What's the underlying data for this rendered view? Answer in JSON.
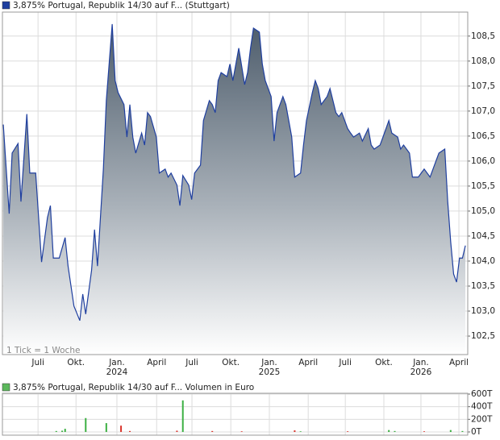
{
  "chart_data": [
    {
      "type": "area",
      "title": "3,875% Portugal, Republik 14/30 auf F... (Stuttgart)",
      "note": "1 Tick = 1 Woche",
      "color": "#1f3f9f",
      "grid": true,
      "x": [
        0,
        2,
        3,
        5,
        6,
        8,
        9,
        11,
        13,
        15,
        16,
        17,
        19,
        21,
        22,
        24,
        26,
        27,
        28,
        30,
        31,
        32,
        34,
        35,
        37,
        38,
        39,
        41,
        42,
        43,
        44,
        45,
        47,
        48,
        49,
        50,
        52,
        53,
        55,
        56,
        57,
        59,
        60,
        61,
        63,
        64,
        65,
        67,
        68,
        70,
        71,
        72,
        73,
        74,
        76,
        77,
        78,
        80,
        82,
        83,
        84,
        85,
        87,
        88,
        89,
        91,
        92,
        93,
        95,
        96,
        98,
        99,
        101,
        102,
        103,
        105,
        106,
        107,
        108,
        110,
        111,
        113,
        114,
        115,
        117,
        118,
        119,
        121,
        122,
        124,
        125,
        126,
        128,
        129,
        131,
        132,
        134,
        135,
        136,
        138,
        139,
        141,
        142,
        143,
        145,
        146,
        147,
        148,
        150,
        151,
        152,
        153,
        154,
        155,
        156,
        157
      ],
      "values": [
        106.73,
        104.95,
        106.16,
        106.35,
        105.19,
        106.94,
        105.76,
        105.76,
        103.98,
        104.87,
        105.11,
        104.06,
        104.06,
        104.47,
        103.9,
        103.1,
        102.81,
        103.34,
        102.94,
        103.82,
        104.63,
        103.9,
        105.84,
        107.21,
        108.74,
        107.61,
        107.37,
        107.13,
        106.48,
        107.13,
        106.48,
        106.16,
        106.56,
        106.32,
        106.97,
        106.89,
        106.48,
        105.76,
        105.84,
        105.68,
        105.76,
        105.52,
        105.11,
        105.71,
        105.52,
        105.23,
        105.76,
        105.92,
        106.81,
        107.21,
        107.13,
        106.97,
        107.61,
        107.77,
        107.69,
        107.94,
        107.61,
        108.26,
        107.53,
        107.77,
        108.26,
        108.66,
        108.58,
        107.94,
        107.61,
        107.29,
        106.4,
        106.97,
        107.29,
        107.13,
        106.48,
        105.68,
        105.76,
        106.32,
        106.81,
        107.37,
        107.61,
        107.45,
        107.13,
        107.29,
        107.45,
        106.97,
        106.89,
        106.97,
        106.65,
        106.56,
        106.48,
        106.56,
        106.4,
        106.65,
        106.32,
        106.24,
        106.32,
        106.48,
        106.81,
        106.56,
        106.48,
        106.24,
        106.32,
        106.16,
        105.68,
        105.68,
        105.76,
        105.84,
        105.68,
        105.84,
        106.0,
        106.16,
        106.24,
        105.19,
        104.39,
        103.74,
        103.58,
        104.06,
        104.06,
        104.31
      ],
      "xlim": [
        -0.3,
        157.8
      ],
      "ylim": [
        102.13,
        108.98
      ],
      "yticks": [
        {
          "value": 102.5,
          "label": "102,5"
        },
        {
          "value": 103,
          "label": "103,0"
        },
        {
          "value": 103.5,
          "label": "103,5"
        },
        {
          "value": 104,
          "label": "104,0"
        },
        {
          "value": 104.5,
          "label": "104,5"
        },
        {
          "value": 105,
          "label": "105,0"
        },
        {
          "value": 105.5,
          "label": "105,5"
        },
        {
          "value": 106,
          "label": "106,0"
        },
        {
          "value": 106.5,
          "label": "106,5"
        },
        {
          "value": 107,
          "label": "107,0"
        },
        {
          "value": 107.5,
          "label": "107,5"
        },
        {
          "value": 108,
          "label": "108,0"
        },
        {
          "value": 108.5,
          "label": "108,5"
        }
      ],
      "xticks": [
        {
          "value": 11.8,
          "label": "Juli"
        },
        {
          "value": 24.7,
          "label": "Okt."
        },
        {
          "value": 38.6,
          "label": "Jan."
        },
        {
          "value": 52.1,
          "label": "April"
        },
        {
          "value": 64.1,
          "label": "Juli"
        },
        {
          "value": 77.3,
          "label": "Okt."
        },
        {
          "value": 90.4,
          "label": "Jan."
        },
        {
          "value": 103.6,
          "label": "April"
        },
        {
          "value": 116.2,
          "label": "Juli"
        },
        {
          "value": 129.3,
          "label": "Okt."
        },
        {
          "value": 141.9,
          "label": "Jan."
        },
        {
          "value": 154.8,
          "label": "April"
        }
      ],
      "year_labels": [
        {
          "value": 38.6,
          "label": "2024"
        },
        {
          "value": 90.4,
          "label": "2025"
        },
        {
          "value": 141.9,
          "label": "2026"
        }
      ]
    },
    {
      "type": "bar",
      "title": "3,875% Portugal, Republik 14/30 auf F... Volumen in Euro",
      "color": "#5cb85c",
      "grid": true,
      "x": [
        18,
        20,
        21,
        28,
        35,
        40,
        43,
        59,
        61,
        71,
        81,
        99,
        101,
        117,
        131,
        133,
        143,
        152,
        156
      ],
      "values": [
        15000,
        20000,
        50000,
        220000,
        140000,
        100000,
        15000,
        20000,
        500000,
        15000,
        10000,
        25000,
        10000,
        10000,
        30000,
        15000,
        10000,
        30000,
        15000
      ],
      "colors": [
        "#3cb043",
        "#3cb043",
        "#3cb043",
        "#3cb043",
        "#3cb043",
        "#d9342b",
        "#d9342b",
        "#d9342b",
        "#3cb043",
        "#d9342b",
        "#d9342b",
        "#d9342b",
        "#3cb043",
        "#d9342b",
        "#3cb043",
        "#3cb043",
        "#d9342b",
        "#3cb043",
        "#3cb043"
      ],
      "xlim": [
        -0.3,
        157.8
      ],
      "ylim": [
        -51000,
        613000
      ],
      "yticks": [
        {
          "value": 0,
          "label": "0T"
        },
        {
          "value": 200000,
          "label": "200T"
        },
        {
          "value": 400000,
          "label": "400T"
        },
        {
          "value": 600000,
          "label": "600T"
        }
      ]
    }
  ]
}
